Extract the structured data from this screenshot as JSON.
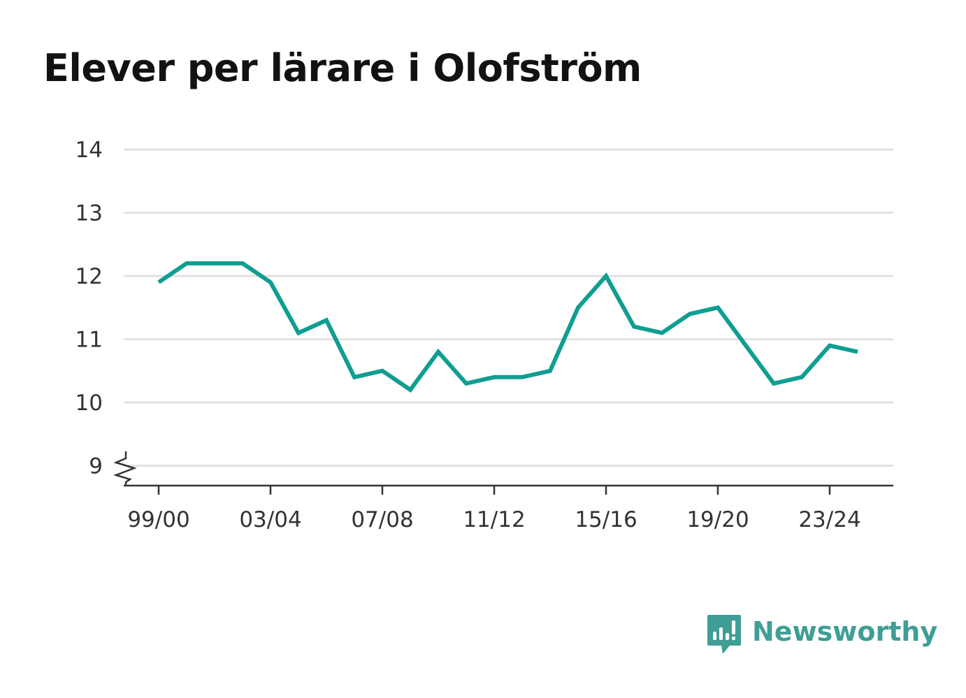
{
  "title": "Elever per lärare i Olofström",
  "brand": {
    "name": "Newsworthy",
    "color": "#3f9e95",
    "icon": "newsworthy-chart-bubble-icon"
  },
  "colors": {
    "line": "#0f9e91",
    "grid": "#dddddd",
    "axis": "#333333",
    "text": "#121212"
  },
  "chart_data": {
    "type": "line",
    "title": "Elever per lärare i Olofström",
    "xlabel": "",
    "ylabel": "",
    "x": [
      "99/00",
      "00/01",
      "01/02",
      "02/03",
      "03/04",
      "04/05",
      "05/06",
      "06/07",
      "07/08",
      "08/09",
      "09/10",
      "10/11",
      "11/12",
      "12/13",
      "13/14",
      "14/15",
      "15/16",
      "16/17",
      "17/18",
      "18/19",
      "19/20",
      "20/21",
      "21/22",
      "22/23",
      "23/24",
      "24/25"
    ],
    "x_tick_labels": [
      "99/00",
      "03/04",
      "07/08",
      "11/12",
      "15/16",
      "19/20",
      "23/24"
    ],
    "series": [
      {
        "values": [
          11.9,
          12.2,
          12.2,
          12.2,
          11.9,
          11.1,
          11.3,
          10.4,
          10.5,
          10.2,
          10.8,
          10.3,
          10.4,
          10.4,
          10.5,
          11.5,
          12.0,
          11.2,
          11.1,
          11.4,
          11.5,
          10.9,
          10.3,
          10.4,
          10.9,
          10.8
        ]
      }
    ],
    "y_ticks": [
      9,
      10,
      11,
      12,
      13,
      14
    ],
    "ylim": [
      8.65,
      14
    ],
    "y_axis_break": true,
    "grid": true,
    "legend": "none"
  }
}
